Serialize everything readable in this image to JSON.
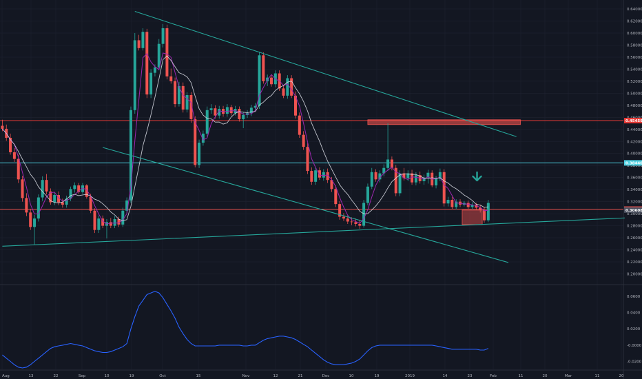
{
  "colors": {
    "background": "#131722",
    "grid": "#1e2230",
    "axis_text": "#b2b5be",
    "candle_up": "#26a69a",
    "candle_down": "#ef5350",
    "ma_fast": "#9c27b0",
    "ma_slow": "#e0e3eb",
    "trendline": "#26a69a",
    "level_red": "#e53935",
    "level_cyan": "#4dd0e1",
    "level_pink": "#ef5350",
    "box_red": "#ef5350",
    "oscillator": "#2962ff",
    "arrow": "#26a69a"
  },
  "chart_data": {
    "type": "candlestick",
    "price_axis": {
      "ticks": [
        "0.64000",
        "0.62000",
        "0.60000",
        "0.58000",
        "0.56000",
        "0.54000",
        "0.52000",
        "0.50000",
        "0.48000",
        "0.46000",
        "0.44000",
        "0.42000",
        "0.40000",
        "0.38000",
        "0.36000",
        "0.34000",
        "0.32000",
        "0.30000",
        "0.28000",
        "0.26000",
        "0.24000",
        "0.22000",
        "0.20000"
      ],
      "ylim": [
        0.188,
        0.648
      ]
    },
    "oscillator_axis": {
      "ticks": [
        "0.0600",
        "0.0400",
        "0.0200",
        "-0.0000",
        "-0.0200"
      ],
      "ylim": [
        -0.028,
        0.07
      ]
    },
    "time_axis": {
      "labels": [
        "Aug",
        "13",
        "22",
        "Sep",
        "10",
        "19",
        "Oct",
        "15",
        "Nov",
        "12",
        "21",
        "Dec",
        "10",
        "19",
        "2019",
        "14",
        "23",
        "Feb",
        "11",
        "20",
        "Mar",
        "11",
        "20"
      ]
    },
    "price_tags": [
      {
        "label": "0.45459",
        "value": 0.45459,
        "color": "#e53935"
      },
      {
        "label": "0.38440",
        "value": 0.3844,
        "color": "#4dd0e1"
      },
      {
        "label": "0.30752",
        "value": 0.30752,
        "color": "#ef5350"
      },
      {
        "label": "0.30608",
        "value": 0.30608,
        "color": "#4a4f5e"
      }
    ],
    "horizontal_levels": [
      {
        "value": 0.45459,
        "color": "#e53935"
      },
      {
        "value": 0.3844,
        "color": "#4dd0e1"
      },
      {
        "value": 0.30752,
        "color": "#ef5350"
      }
    ],
    "trendlines": [
      {
        "name": "upper-resistance",
        "from": {
          "t": 33,
          "p": 0.636
        },
        "to": {
          "t": 128,
          "p": 0.428
        }
      },
      {
        "name": "lower-channel",
        "from": {
          "t": 25,
          "p": 0.41
        },
        "to": {
          "t": 126,
          "p": 0.219
        }
      },
      {
        "name": "long-term-support",
        "from": {
          "t": 0,
          "p": 0.246
        },
        "to": {
          "t": 155,
          "p": 0.293
        }
      }
    ],
    "zones": [
      {
        "name": "resistance-zone",
        "t0": 91,
        "t1": 129,
        "p0": 0.448,
        "p1": 0.456
      },
      {
        "name": "support-box",
        "t0": 114.5,
        "t1": 119.5,
        "p0": 0.282,
        "p1": 0.306
      }
    ],
    "arrow": {
      "t": 118.2,
      "p": 0.362,
      "direction": "down"
    },
    "candles": [
      [
        0.446,
        0.456,
        0.437,
        0.441
      ],
      [
        0.441,
        0.448,
        0.421,
        0.426
      ],
      [
        0.426,
        0.433,
        0.398,
        0.402
      ],
      [
        0.402,
        0.409,
        0.386,
        0.391
      ],
      [
        0.391,
        0.398,
        0.351,
        0.357
      ],
      [
        0.357,
        0.363,
        0.32,
        0.326
      ],
      [
        0.326,
        0.334,
        0.296,
        0.302
      ],
      [
        0.302,
        0.307,
        0.273,
        0.278
      ],
      [
        0.278,
        0.298,
        0.249,
        0.292
      ],
      [
        0.292,
        0.332,
        0.287,
        0.327
      ],
      [
        0.327,
        0.362,
        0.321,
        0.356
      ],
      [
        0.356,
        0.366,
        0.332,
        0.337
      ],
      [
        0.337,
        0.342,
        0.315,
        0.319
      ],
      [
        0.319,
        0.336,
        0.314,
        0.331
      ],
      [
        0.331,
        0.337,
        0.314,
        0.319
      ],
      [
        0.319,
        0.325,
        0.31,
        0.315
      ],
      [
        0.315,
        0.33,
        0.31,
        0.325
      ],
      [
        0.325,
        0.345,
        0.321,
        0.341
      ],
      [
        0.341,
        0.352,
        0.335,
        0.347
      ],
      [
        0.347,
        0.351,
        0.333,
        0.336
      ],
      [
        0.336,
        0.351,
        0.333,
        0.347
      ],
      [
        0.347,
        0.349,
        0.325,
        0.328
      ],
      [
        0.328,
        0.333,
        0.301,
        0.305
      ],
      [
        0.305,
        0.309,
        0.268,
        0.273
      ],
      [
        0.273,
        0.297,
        0.268,
        0.292
      ],
      [
        0.292,
        0.297,
        0.276,
        0.28
      ],
      [
        0.28,
        0.291,
        0.259,
        0.286
      ],
      [
        0.286,
        0.293,
        0.276,
        0.28
      ],
      [
        0.28,
        0.296,
        0.276,
        0.291
      ],
      [
        0.291,
        0.295,
        0.278,
        0.282
      ],
      [
        0.282,
        0.31,
        0.278,
        0.305
      ],
      [
        0.305,
        0.327,
        0.301,
        0.322
      ],
      [
        0.322,
        0.478,
        0.318,
        0.472
      ],
      [
        0.472,
        0.6,
        0.466,
        0.588
      ],
      [
        0.588,
        0.597,
        0.571,
        0.575
      ],
      [
        0.575,
        0.608,
        0.571,
        0.602
      ],
      [
        0.602,
        0.607,
        0.492,
        0.498
      ],
      [
        0.498,
        0.54,
        0.492,
        0.534
      ],
      [
        0.534,
        0.548,
        0.528,
        0.543
      ],
      [
        0.543,
        0.59,
        0.538,
        0.582
      ],
      [
        0.582,
        0.615,
        0.576,
        0.608
      ],
      [
        0.608,
        0.614,
        0.523,
        0.528
      ],
      [
        0.528,
        0.541,
        0.516,
        0.52
      ],
      [
        0.52,
        0.526,
        0.477,
        0.482
      ],
      [
        0.482,
        0.519,
        0.478,
        0.512
      ],
      [
        0.512,
        0.518,
        0.468,
        0.473
      ],
      [
        0.473,
        0.502,
        0.468,
        0.497
      ],
      [
        0.497,
        0.502,
        0.451,
        0.457
      ],
      [
        0.457,
        0.462,
        0.377,
        0.381
      ],
      [
        0.381,
        0.423,
        0.376,
        0.418
      ],
      [
        0.418,
        0.438,
        0.413,
        0.433
      ],
      [
        0.433,
        0.478,
        0.428,
        0.472
      ],
      [
        0.472,
        0.482,
        0.466,
        0.475
      ],
      [
        0.475,
        0.48,
        0.458,
        0.463
      ],
      [
        0.463,
        0.479,
        0.458,
        0.474
      ],
      [
        0.474,
        0.479,
        0.461,
        0.466
      ],
      [
        0.466,
        0.482,
        0.461,
        0.477
      ],
      [
        0.477,
        0.481,
        0.463,
        0.467
      ],
      [
        0.467,
        0.479,
        0.463,
        0.474
      ],
      [
        0.474,
        0.478,
        0.453,
        0.457
      ],
      [
        0.457,
        0.469,
        0.442,
        0.464
      ],
      [
        0.464,
        0.472,
        0.459,
        0.467
      ],
      [
        0.467,
        0.481,
        0.462,
        0.476
      ],
      [
        0.476,
        0.484,
        0.471,
        0.479
      ],
      [
        0.479,
        0.569,
        0.474,
        0.563
      ],
      [
        0.563,
        0.568,
        0.516,
        0.52
      ],
      [
        0.52,
        0.531,
        0.512,
        0.526
      ],
      [
        0.526,
        0.531,
        0.511,
        0.515
      ],
      [
        0.515,
        0.538,
        0.51,
        0.533
      ],
      [
        0.533,
        0.538,
        0.504,
        0.508
      ],
      [
        0.508,
        0.513,
        0.492,
        0.496
      ],
      [
        0.496,
        0.53,
        0.491,
        0.525
      ],
      [
        0.525,
        0.53,
        0.492,
        0.496
      ],
      [
        0.496,
        0.503,
        0.458,
        0.463
      ],
      [
        0.463,
        0.468,
        0.426,
        0.431
      ],
      [
        0.431,
        0.437,
        0.406,
        0.411
      ],
      [
        0.411,
        0.417,
        0.366,
        0.371
      ],
      [
        0.371,
        0.377,
        0.348,
        0.353
      ],
      [
        0.353,
        0.377,
        0.348,
        0.372
      ],
      [
        0.372,
        0.377,
        0.356,
        0.36
      ],
      [
        0.36,
        0.374,
        0.355,
        0.369
      ],
      [
        0.369,
        0.375,
        0.351,
        0.356
      ],
      [
        0.356,
        0.361,
        0.336,
        0.341
      ],
      [
        0.341,
        0.347,
        0.311,
        0.316
      ],
      [
        0.316,
        0.321,
        0.29,
        0.295
      ],
      [
        0.295,
        0.301,
        0.288,
        0.292
      ],
      [
        0.292,
        0.298,
        0.283,
        0.287
      ],
      [
        0.287,
        0.294,
        0.281,
        0.286
      ],
      [
        0.286,
        0.292,
        0.279,
        0.283
      ],
      [
        0.283,
        0.29,
        0.275,
        0.28
      ],
      [
        0.28,
        0.323,
        0.277,
        0.318
      ],
      [
        0.318,
        0.35,
        0.314,
        0.345
      ],
      [
        0.345,
        0.376,
        0.341,
        0.369
      ],
      [
        0.369,
        0.374,
        0.353,
        0.357
      ],
      [
        0.357,
        0.372,
        0.352,
        0.367
      ],
      [
        0.367,
        0.382,
        0.362,
        0.376
      ],
      [
        0.376,
        0.45,
        0.371,
        0.39
      ],
      [
        0.39,
        0.395,
        0.372,
        0.376
      ],
      [
        0.376,
        0.381,
        0.329,
        0.334
      ],
      [
        0.334,
        0.372,
        0.329,
        0.367
      ],
      [
        0.367,
        0.376,
        0.355,
        0.359
      ],
      [
        0.359,
        0.372,
        0.354,
        0.367
      ],
      [
        0.367,
        0.373,
        0.348,
        0.352
      ],
      [
        0.352,
        0.369,
        0.347,
        0.364
      ],
      [
        0.364,
        0.37,
        0.35,
        0.354
      ],
      [
        0.354,
        0.365,
        0.348,
        0.36
      ],
      [
        0.36,
        0.373,
        0.35,
        0.368
      ],
      [
        0.368,
        0.372,
        0.344,
        0.347
      ],
      [
        0.347,
        0.363,
        0.342,
        0.358
      ],
      [
        0.358,
        0.375,
        0.354,
        0.369
      ],
      [
        0.369,
        0.374,
        0.312,
        0.317
      ],
      [
        0.317,
        0.328,
        0.312,
        0.323
      ],
      [
        0.323,
        0.328,
        0.308,
        0.311
      ],
      [
        0.311,
        0.324,
        0.307,
        0.32
      ],
      [
        0.32,
        0.324,
        0.311,
        0.315
      ],
      [
        0.315,
        0.321,
        0.312,
        0.318
      ],
      [
        0.318,
        0.322,
        0.308,
        0.311
      ],
      [
        0.311,
        0.319,
        0.307,
        0.315
      ],
      [
        0.315,
        0.318,
        0.306,
        0.31
      ],
      [
        0.31,
        0.314,
        0.302,
        0.306
      ],
      [
        0.306,
        0.311,
        0.285,
        0.289
      ],
      [
        0.289,
        0.323,
        0.286,
        0.318
      ]
    ],
    "oscillator": [
      -0.012,
      -0.016,
      -0.02,
      -0.024,
      -0.027,
      -0.028,
      -0.027,
      -0.024,
      -0.02,
      -0.016,
      -0.012,
      -0.008,
      -0.004,
      -0.002,
      -0.001,
      0,
      0.001,
      0.002,
      0.001,
      0,
      -0.001,
      -0.003,
      -0.005,
      -0.007,
      -0.008,
      -0.009,
      -0.009,
      -0.008,
      -0.006,
      -0.004,
      -0.002,
      0.002,
      0.02,
      0.035,
      0.048,
      0.055,
      0.062,
      0.064,
      0.066,
      0.064,
      0.058,
      0.05,
      0.042,
      0.033,
      0.022,
      0.014,
      0.007,
      0.002,
      -0.001,
      -0.001,
      -0.001,
      -0.001,
      -0.001,
      -0.001,
      0,
      0,
      0,
      0,
      0,
      0,
      -0.001,
      -0.001,
      0,
      0,
      0.003,
      0.006,
      0.008,
      0.009,
      0.01,
      0.011,
      0.011,
      0.01,
      0.009,
      0.007,
      0.004,
      0.001,
      -0.002,
      -0.006,
      -0.01,
      -0.014,
      -0.018,
      -0.021,
      -0.023,
      -0.024,
      -0.024,
      -0.024,
      -0.023,
      -0.022,
      -0.02,
      -0.017,
      -0.012,
      -0.007,
      -0.003,
      -0.001,
      0,
      0,
      0,
      0,
      0,
      0,
      0,
      0,
      0,
      0,
      0,
      0,
      0,
      0,
      -0.001,
      -0.002,
      -0.003,
      -0.004,
      -0.005,
      -0.005,
      -0.005,
      -0.005,
      -0.005,
      -0.005,
      -0.005,
      -0.006,
      -0.006,
      -0.004
    ],
    "grid": true
  }
}
